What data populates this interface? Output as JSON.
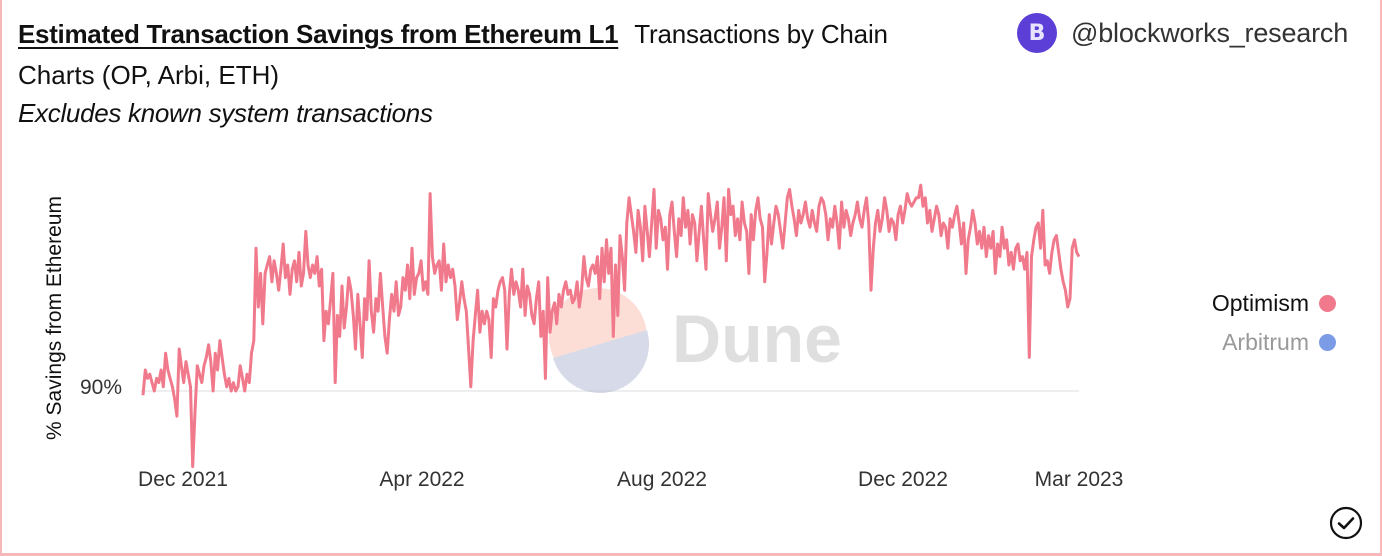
{
  "header": {
    "title_link": "Estimated Transaction Savings from Ethereum L1",
    "title_rest_line1": "Transactions by Chain",
    "title_rest_line2": "Charts (OP, Arbi, ETH)",
    "subtitle": "Excludes known system transactions"
  },
  "author": {
    "handle": "@blockworks_research",
    "avatar_letter": "B",
    "avatar_color": "#5b3fd6"
  },
  "watermark": {
    "text": "Dune",
    "color": "#d9d9d9"
  },
  "status_icon": "check-circle-icon",
  "colors": {
    "optimism": "#f07a8c",
    "arbitrum": "#7b9be6",
    "legend_inactive_text": "#999999",
    "grid": "#eeeeee",
    "border": "#f6b8b8"
  },
  "chart_data": {
    "type": "line",
    "title": "Estimated Transaction Savings from Ethereum L1",
    "subtitle": "Excludes known system transactions",
    "xlabel": "",
    "ylabel": "% Savings from Ethereum",
    "x_ticks": [
      "Dec 2021",
      "Apr 2022",
      "Aug 2022",
      "Dec 2022",
      "Mar 2023"
    ],
    "y_ticks": [
      "90%"
    ],
    "x_range": [
      "Nov 2021",
      "Mar 2023"
    ],
    "grid": true,
    "legend_position": "right",
    "legend": [
      {
        "name": "Optimism",
        "color": "#f07a8c",
        "visible": true
      },
      {
        "name": "Arbitrum",
        "color": "#7b9be6",
        "visible": false
      }
    ],
    "series": [
      {
        "name": "Optimism",
        "note": "approximate daily values, estimated from pixel positions (90% gridline as reference)",
        "x_start": "2021-11-18",
        "x_end": "2023-03-05",
        "values": [
          89.9,
          90.5,
          90.3,
          90.4,
          90.2,
          90.0,
          90.3,
          90.2,
          90.5,
          90.1,
          90.9,
          90.5,
          90.3,
          90.1,
          89.8,
          89.4,
          91.0,
          90.6,
          90.2,
          90.7,
          90.4,
          90.1,
          88.2,
          89.5,
          90.6,
          90.4,
          90.2,
          90.6,
          90.8,
          91.1,
          90.7,
          90.0,
          90.9,
          90.5,
          91.2,
          90.8,
          90.4,
          90.1,
          90.3,
          90.0,
          90.2,
          90.0,
          90.1,
          90.6,
          90.3,
          90.0,
          90.4,
          90.2,
          90.9,
          91.2,
          93.4,
          92.0,
          92.8,
          91.6,
          92.8,
          93.0,
          93.2,
          92.6,
          93.1,
          92.8,
          92.4,
          92.9,
          93.5,
          92.7,
          93.0,
          92.3,
          92.9,
          93.1,
          92.6,
          93.3,
          92.5,
          92.8,
          93.8,
          93.0,
          92.7,
          93.0,
          92.8,
          93.2,
          92.5,
          92.9,
          91.2,
          91.9,
          91.6,
          92.2,
          92.8,
          90.2,
          91.8,
          91.3,
          92.5,
          91.5,
          92.0,
          92.7,
          92.4,
          91.8,
          91.0,
          92.3,
          91.6,
          90.8,
          92.2,
          91.7,
          93.1,
          91.9,
          91.4,
          92.2,
          91.9,
          92.8,
          92.0,
          91.3,
          90.9,
          91.7,
          92.3,
          91.9,
          92.6,
          91.8,
          92.0,
          92.7,
          92.4,
          93.0,
          92.2,
          93.4,
          92.3,
          92.7,
          92.8,
          93.1,
          92.4,
          92.6,
          92.3,
          94.7,
          93.2,
          92.8,
          93.0,
          93.1,
          92.4,
          93.5,
          92.6,
          93.0,
          92.7,
          92.9,
          92.5,
          91.7,
          92.1,
          92.6,
          92.2,
          91.9,
          91.0,
          90.1,
          91.2,
          91.8,
          92.4,
          91.4,
          91.9,
          91.6,
          91.9,
          91.7,
          90.8,
          92.2,
          92.0,
          92.4,
          92.6,
          92.7,
          92.4,
          91.0,
          92.3,
          92.9,
          92.3,
          92.6,
          92.4,
          92.0,
          92.9,
          91.8,
          92.5,
          92.3,
          91.8,
          91.6,
          92.2,
          92.6,
          91.3,
          91.9,
          90.3,
          92.7,
          91.4,
          91.9,
          92.1,
          91.6,
          92.3,
          92.0,
          92.4,
          92.6,
          92.3,
          92.4,
          92.1,
          92.2,
          92.6,
          92.0,
          92.4,
          93.2,
          92.7,
          92.5,
          92.9,
          93.0,
          92.8,
          93.2,
          92.2,
          93.4,
          92.6,
          93.6,
          92.8,
          93.4,
          91.3,
          93.0,
          91.8,
          93.7,
          93.2,
          92.4,
          94.0,
          94.6,
          94.2,
          93.8,
          93.3,
          94.3,
          93.9,
          93.1,
          94.4,
          93.8,
          93.2,
          94.0,
          94.8,
          93.4,
          94.3,
          94.1,
          93.6,
          93.9,
          92.9,
          94.2,
          94.5,
          93.8,
          93.2,
          94.1,
          93.7,
          94.6,
          93.9,
          94.3,
          93.5,
          94.2,
          94.0,
          93.1,
          93.8,
          94.4,
          93.6,
          92.9,
          94.7,
          94.2,
          93.8,
          94.1,
          94.5,
          93.4,
          93.9,
          94.6,
          93.1,
          94.8,
          94.2,
          94.4,
          93.7,
          94.1,
          93.6,
          94.5,
          94.0,
          93.8,
          92.8,
          94.2,
          93.6,
          94.3,
          94.6,
          94.1,
          93.9,
          92.6,
          93.3,
          94.2,
          93.5,
          94.0,
          94.4,
          94.2,
          93.8,
          93.4,
          94.0,
          94.6,
          94.8,
          94.4,
          94.1,
          93.7,
          94.3,
          94.0,
          94.2,
          94.5,
          94.1,
          93.9,
          94.3,
          94.0,
          93.8,
          94.4,
          94.6,
          94.5,
          94.2,
          93.6,
          94.1,
          93.9,
          94.4,
          94.0,
          93.4,
          94.5,
          93.9,
          94.3,
          94.1,
          93.7,
          94.0,
          94.2,
          94.5,
          94.1,
          93.9,
          94.3,
          94.6,
          94.0,
          92.4,
          93.4,
          94.0,
          94.3,
          93.8,
          94.1,
          94.6,
          94.3,
          93.8,
          94.1,
          94.0,
          93.6,
          94.2,
          94.4,
          94.0,
          94.3,
          94.7,
          94.5,
          94.4,
          94.5,
          94.6,
          94.6,
          94.9,
          94.4,
          94.6,
          94.0,
          94.3,
          93.8,
          94.1,
          94.4,
          94.2,
          93.7,
          94.0,
          93.9,
          93.4,
          94.1,
          93.9,
          94.2,
          94.4,
          94.0,
          93.5,
          94.0,
          92.8,
          93.6,
          93.9,
          94.3,
          94.0,
          93.5,
          93.8,
          93.4,
          93.9,
          93.2,
          93.7,
          93.4,
          93.8,
          92.8,
          93.5,
          93.2,
          93.9,
          93.4,
          93.6,
          93.0,
          93.3,
          92.9,
          93.4,
          93.5,
          93.1,
          93.2,
          92.9,
          93.3,
          90.8,
          93.2,
          93.6,
          93.9,
          94.0,
          93.4,
          94.3,
          93.0,
          93.1,
          92.8,
          93.3,
          93.6,
          93.7,
          93.3,
          92.9,
          92.6,
          92.4,
          92.0,
          92.2,
          93.4,
          93.6,
          93.3,
          93.2
        ]
      },
      {
        "name": "Arbitrum",
        "note": "series hidden (legend toggled off)",
        "values": []
      }
    ]
  }
}
